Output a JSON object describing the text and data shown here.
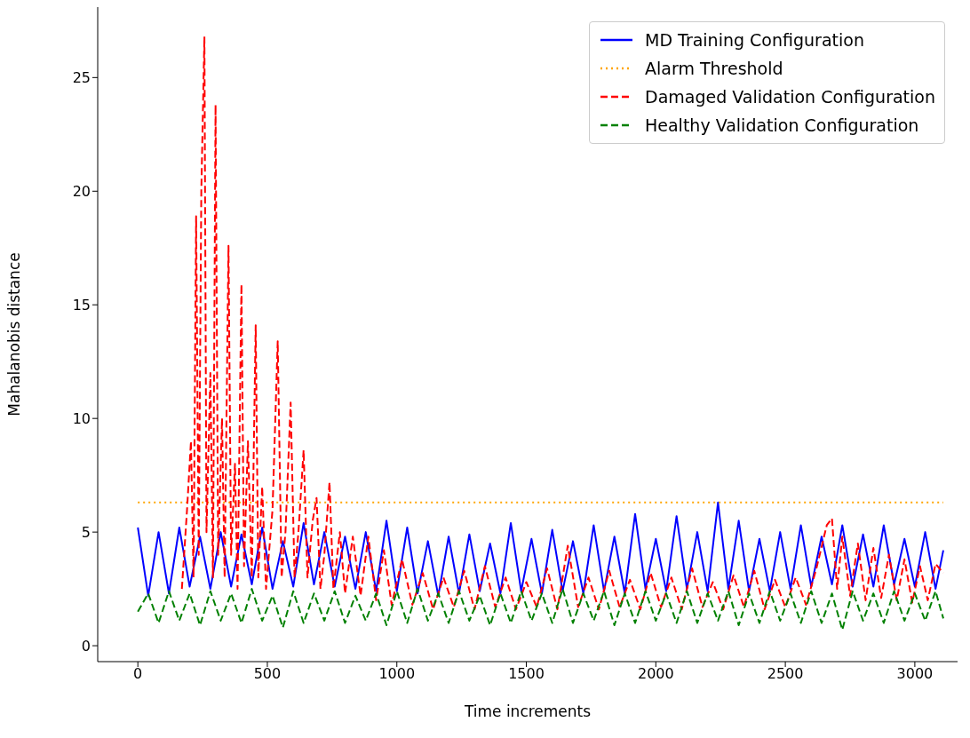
{
  "chart_data": {
    "type": "line",
    "xlabel": "Time increments",
    "ylabel": "Mahalanobis distance",
    "xlim": [
      -155,
      3165
    ],
    "ylim": [
      -0.7,
      28.1
    ],
    "xticks": [
      0,
      500,
      1000,
      1500,
      2000,
      2500,
      3000
    ],
    "yticks": [
      0,
      5,
      10,
      15,
      20,
      25
    ],
    "grid": false,
    "legend": "top right",
    "x": [
      0,
      40,
      80,
      120,
      160,
      200,
      240,
      280,
      320,
      360,
      400,
      440,
      480,
      520,
      560,
      600,
      640,
      680,
      720,
      760,
      800,
      840,
      880,
      920,
      960,
      1000,
      1040,
      1080,
      1120,
      1160,
      1200,
      1240,
      1280,
      1320,
      1360,
      1400,
      1440,
      1480,
      1520,
      1560,
      1600,
      1640,
      1680,
      1720,
      1760,
      1800,
      1840,
      1880,
      1920,
      1960,
      2000,
      2040,
      2080,
      2120,
      2160,
      2200,
      2240,
      2280,
      2320,
      2360,
      2400,
      2440,
      2480,
      2520,
      2560,
      2600,
      2640,
      2680,
      2720,
      2760,
      2800,
      2840,
      2880,
      2920,
      2960,
      3000,
      3040,
      3080,
      3110
    ],
    "series": [
      {
        "name": "MD Training Configuration",
        "color": "#0000ff",
        "line_style": "solid",
        "values": [
          5.2,
          2.2,
          5.0,
          2.3,
          5.2,
          2.6,
          4.8,
          2.5,
          5.0,
          2.6,
          4.9,
          2.7,
          5.2,
          2.5,
          4.6,
          2.6,
          5.4,
          2.7,
          5.0,
          2.6,
          4.8,
          2.5,
          5.0,
          2.4,
          5.5,
          2.4,
          5.2,
          2.3,
          4.6,
          2.2,
          4.8,
          2.3,
          4.9,
          2.4,
          4.5,
          2.3,
          5.4,
          2.4,
          4.7,
          2.3,
          5.1,
          2.4,
          4.6,
          2.3,
          5.3,
          2.4,
          4.8,
          2.3,
          5.8,
          2.5,
          4.7,
          2.4,
          5.7,
          2.5,
          5.0,
          2.4,
          6.3,
          2.5,
          5.5,
          2.4,
          4.7,
          2.4,
          5.0,
          2.5,
          5.3,
          2.6,
          4.8,
          2.7,
          5.3,
          2.6,
          4.9,
          2.6,
          5.3,
          2.7,
          4.7,
          2.6,
          5.0,
          2.5,
          4.2
        ]
      },
      {
        "name": "Alarm Threshold",
        "color": "#ffa500",
        "line_style": "dotted",
        "x": [
          0,
          3110
        ],
        "values": [
          6.3,
          6.3
        ]
      },
      {
        "name": "Damaged Validation Configuration",
        "color": "#ff0000",
        "line_style": "dashed",
        "x": [
          170,
          190,
          205,
          215,
          225,
          235,
          245,
          257,
          265,
          280,
          290,
          300,
          310,
          325,
          335,
          350,
          360,
          375,
          385,
          400,
          410,
          425,
          440,
          455,
          465,
          480,
          495,
          520,
          540,
          555,
          570,
          590,
          605,
          620,
          640,
          655,
          675,
          690,
          705,
          720,
          740,
          755,
          780,
          800,
          830,
          860,
          890,
          920,
          950,
          980,
          1020,
          1060,
          1100,
          1140,
          1180,
          1220,
          1260,
          1300,
          1340,
          1380,
          1420,
          1460,
          1500,
          1540,
          1580,
          1620,
          1660,
          1700,
          1740,
          1780,
          1820,
          1860,
          1900,
          1940,
          1980,
          2020,
          2060,
          2100,
          2140,
          2180,
          2220,
          2260,
          2300,
          2340,
          2380,
          2420,
          2460,
          2500,
          2540,
          2580,
          2620,
          2660,
          2680,
          2700,
          2720,
          2750,
          2780,
          2810,
          2840,
          2870,
          2900,
          2930,
          2960,
          2990,
          3020,
          3050,
          3080,
          3110
        ],
        "values": [
          2.5,
          6.0,
          9.0,
          3.0,
          18.9,
          4.0,
          20.0,
          26.8,
          5.0,
          12.0,
          3.0,
          23.8,
          4.0,
          10.0,
          3.0,
          17.6,
          4.0,
          8.0,
          2.5,
          15.9,
          3.5,
          9.0,
          3.0,
          14.1,
          3.0,
          7.0,
          2.5,
          6.0,
          13.4,
          3.0,
          5.0,
          10.7,
          3.0,
          5.0,
          8.6,
          3.0,
          5.5,
          6.5,
          2.5,
          4.0,
          7.2,
          2.5,
          5.0,
          2.3,
          4.8,
          2.2,
          4.8,
          2.0,
          4.2,
          1.8,
          3.8,
          1.8,
          3.2,
          1.6,
          3.0,
          1.7,
          3.3,
          1.6,
          3.5,
          1.7,
          3.0,
          1.6,
          2.8,
          1.7,
          3.4,
          1.6,
          4.4,
          1.7,
          3.0,
          1.6,
          3.3,
          1.7,
          2.9,
          1.6,
          3.2,
          1.7,
          3.0,
          1.6,
          3.4,
          1.7,
          2.8,
          1.6,
          3.1,
          1.7,
          3.3,
          1.6,
          2.9,
          1.7,
          3.0,
          1.8,
          3.4,
          5.3,
          5.6,
          2.5,
          4.8,
          2.2,
          4.5,
          2.0,
          4.3,
          2.1,
          4.0,
          2.0,
          3.8,
          1.9,
          3.5,
          2.0,
          3.6,
          3.2
        ]
      },
      {
        "name": "Healthy Validation Configuration",
        "color": "#008000",
        "line_style": "dashed",
        "values": [
          1.5,
          2.3,
          1.0,
          2.4,
          1.1,
          2.3,
          0.9,
          2.4,
          1.1,
          2.3,
          1.0,
          2.5,
          1.1,
          2.2,
          0.8,
          2.4,
          1.0,
          2.3,
          1.1,
          2.4,
          1.0,
          2.2,
          1.1,
          2.3,
          0.9,
          2.4,
          1.0,
          2.5,
          1.1,
          2.3,
          1.0,
          2.4,
          1.1,
          2.2,
          0.9,
          2.3,
          1.0,
          2.4,
          1.1,
          2.3,
          1.0,
          2.5,
          1.0,
          2.3,
          1.1,
          2.4,
          0.9,
          2.3,
          1.0,
          2.4,
          1.1,
          2.3,
          1.0,
          2.4,
          1.0,
          2.3,
          1.1,
          2.4,
          0.9,
          2.3,
          1.0,
          2.4,
          1.1,
          2.3,
          1.0,
          2.4,
          1.0,
          2.3,
          0.7,
          2.4,
          1.1,
          2.3,
          1.0,
          2.4,
          1.1,
          2.3,
          1.1,
          2.4,
          1.2
        ]
      }
    ]
  }
}
